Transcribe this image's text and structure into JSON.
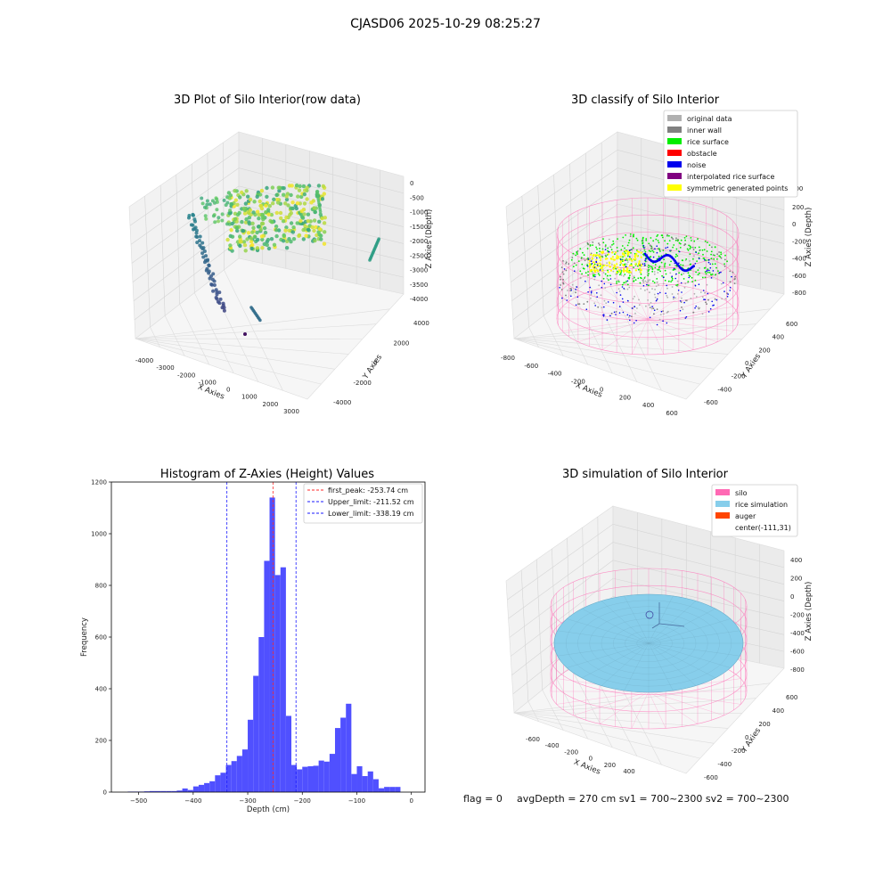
{
  "figure_title": "CJASD06 2025-10-29 08:25:27",
  "footer": {
    "flag": "flag = 0",
    "stats": "avgDepth = 270 cm  sv1 = 700~2300  sv2 = 700~2300"
  },
  "colors": {
    "hist_bar": "#4c4cff",
    "peak_line": "#ff2a2a",
    "limit_line": "#1a1aff",
    "silo": "#ff69b4",
    "rice_simulation": "#87ceeb",
    "auger": "#ff4500",
    "original_data": "#b0b0b0",
    "inner_wall": "#808080",
    "rice_surface": "#00ee00",
    "obstacle": "#ff0000",
    "noise": "#0000ee",
    "interpolated_rice_surface": "#800080",
    "symmetric_generated_points": "#ffff00"
  },
  "chart_data": [
    {
      "type": "scatter",
      "title": "3D Plot of Silo Interior(row data)",
      "xlabel": "X Axies",
      "ylabel": "Y Axies",
      "zlabel": "Z Axies (Depth)",
      "xticks": [
        "-4000",
        "-3000",
        "-2000",
        "-1000",
        "0",
        "1000",
        "2000",
        "3000"
      ],
      "yticks": [
        "-4000",
        "-2000",
        "0",
        "2000",
        "4000"
      ],
      "zticks": [
        "0",
        "-500",
        "-1000",
        "-1500",
        "-2000",
        "-2500",
        "-3000",
        "-3500",
        "-4000"
      ],
      "grid": true
    },
    {
      "type": "scatter",
      "title": "3D classify of Silo Interior",
      "xlabel": "X Axies",
      "ylabel": "Y Axies",
      "zlabel": "Z Axies (Depth)",
      "xticks": [
        "-800",
        "-600",
        "-400",
        "-200",
        "0",
        "200",
        "400",
        "600"
      ],
      "yticks": [
        "-600",
        "-400",
        "-200",
        "0",
        "200",
        "400",
        "600"
      ],
      "zticks": [
        "200",
        "0",
        "-200",
        "-400",
        "-600",
        "-800"
      ],
      "zticks_top": "400",
      "legend_position": "top-right",
      "legend": [
        {
          "label": "original data",
          "color": "#b0b0b0"
        },
        {
          "label": "inner wall",
          "color": "#808080"
        },
        {
          "label": "rice surface",
          "color": "#00ee00"
        },
        {
          "label": "obstacle",
          "color": "#ff0000"
        },
        {
          "label": "noise",
          "color": "#0000ee"
        },
        {
          "label": "interpolated rice surface",
          "color": "#800080"
        },
        {
          "label": "symmetric generated points",
          "color": "#ffff00"
        }
      ],
      "grid": true
    },
    {
      "type": "bar",
      "title": "Histogram of Z-Axies (Height) Values",
      "xlabel": "Depth (cm)",
      "ylabel": "Frequency",
      "xlim": [
        -550,
        25
      ],
      "ylim": [
        0,
        1200
      ],
      "xticks": [
        -500,
        -400,
        -300,
        -200,
        -100,
        0
      ],
      "yticks": [
        0,
        200,
        400,
        600,
        800,
        1000,
        1200
      ],
      "bin_width": 10,
      "bins_start": [
        -520,
        -510,
        -500,
        -490,
        -480,
        -470,
        -460,
        -450,
        -440,
        -430,
        -420,
        -410,
        -400,
        -390,
        -380,
        -370,
        -360,
        -350,
        -340,
        -330,
        -320,
        -310,
        -300,
        -290,
        -280,
        -270,
        -260,
        -250,
        -240,
        -230,
        -220,
        -210,
        -200,
        -190,
        -180,
        -170,
        -160,
        -150,
        -140,
        -130,
        -120,
        -110,
        -100,
        -90,
        -80,
        -70,
        -60,
        -50,
        -40,
        -30,
        -20,
        -10
      ],
      "values": [
        2,
        2,
        2,
        3,
        4,
        4,
        4,
        4,
        4,
        6,
        14,
        8,
        22,
        28,
        35,
        42,
        65,
        75,
        105,
        120,
        140,
        165,
        280,
        450,
        600,
        895,
        1140,
        840,
        870,
        295,
        105,
        88,
        98,
        100,
        102,
        122,
        118,
        148,
        248,
        288,
        342,
        70,
        100,
        62,
        80,
        50,
        15,
        20,
        20,
        20,
        0,
        0
      ],
      "lines": [
        {
          "label": "first_peak: -253.74 cm",
          "value": -253.74,
          "color": "#ff2a2a"
        },
        {
          "label": "Upper_limit: -211.52 cm",
          "value": -211.52,
          "color": "#1a1aff"
        },
        {
          "label": "Lower_limit: -338.19 cm",
          "value": -338.19,
          "color": "#1a1aff"
        }
      ],
      "legend_position": "top-right",
      "grid": false
    },
    {
      "type": "scatter",
      "title": "3D simulation of Silo Interior",
      "xlabel": "X Axies",
      "ylabel": "Y Axies",
      "zlabel": "Z Axies (Depth)",
      "xticks": [
        "-600",
        "-400",
        "-200",
        "0",
        "200",
        "400"
      ],
      "yticks": [
        "-600",
        "-400",
        "-200",
        "0",
        "200",
        "400",
        "600"
      ],
      "zticks": [
        "400",
        "200",
        "0",
        "-200",
        "-400",
        "-600",
        "-800"
      ],
      "legend_position": "top-right",
      "legend": [
        {
          "label": "silo",
          "color": "#ff69b4"
        },
        {
          "label": "rice simulation",
          "color": "#87ceeb"
        },
        {
          "label": "auger",
          "color": "#ff4500"
        },
        {
          "label": "center(-111,31)",
          "color": ""
        }
      ],
      "grid": true
    }
  ]
}
